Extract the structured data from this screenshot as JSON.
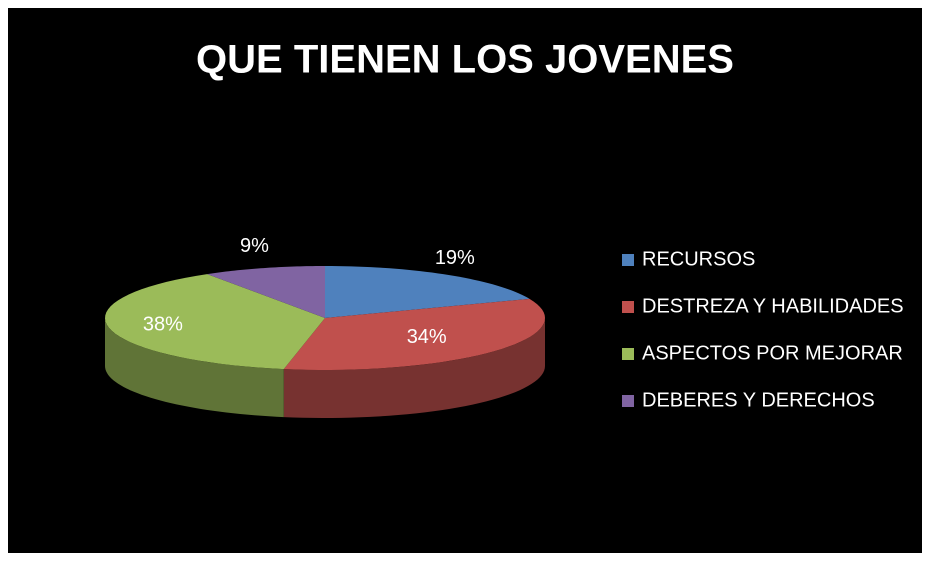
{
  "chart_data": {
    "type": "pie",
    "title": "QUE TIENEN LOS JOVENES",
    "categories": [
      "RECURSOS",
      "DESTREZA Y HABILIDADES",
      "ASPECTOS POR MEJORAR",
      "DEBERES Y DERECHOS"
    ],
    "values": [
      19,
      34,
      38,
      9
    ],
    "value_labels": [
      "19%",
      "34%",
      "38%",
      "9%"
    ],
    "colors": [
      "#4f81bd",
      "#c0504d",
      "#9bbb59",
      "#8064a2"
    ],
    "legend": "right"
  }
}
